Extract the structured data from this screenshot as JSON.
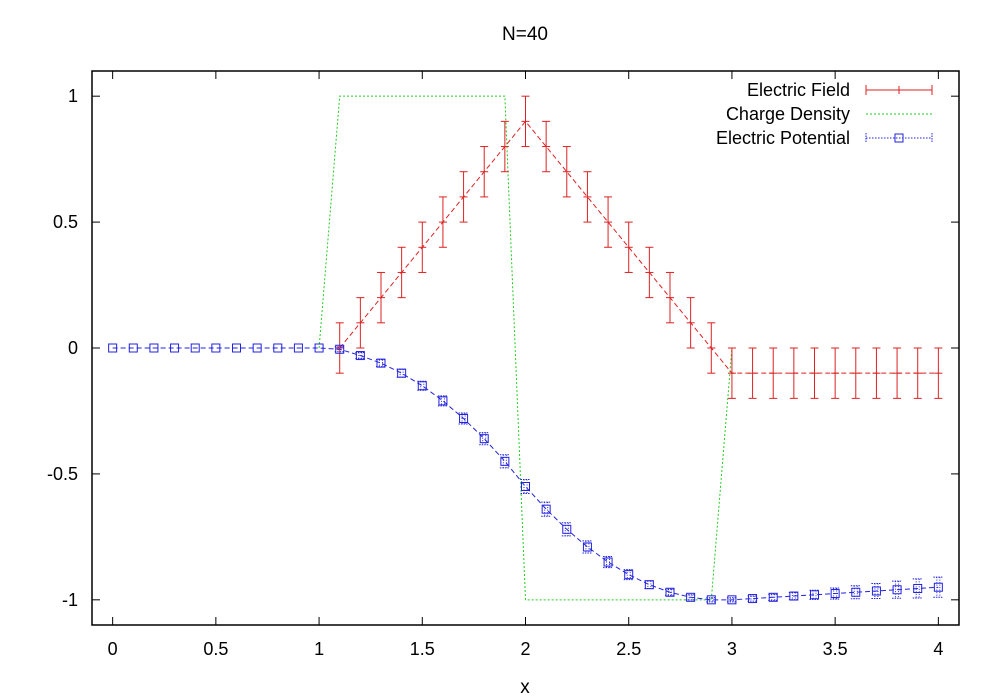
{
  "chart_data": {
    "type": "line",
    "title": "N=40",
    "xlabel": "x",
    "ylabel": "",
    "xlim": [
      -0.1,
      4.1
    ],
    "ylim": [
      -1.1,
      1.1
    ],
    "grid": false,
    "legend_position": "top-right",
    "x_ticks": [
      {
        "value": 0,
        "label": "0"
      },
      {
        "value": 0.5,
        "label": "0.5"
      },
      {
        "value": 1,
        "label": "1"
      },
      {
        "value": 1.5,
        "label": "1.5"
      },
      {
        "value": 2,
        "label": "2"
      },
      {
        "value": 2.5,
        "label": "2.5"
      },
      {
        "value": 3,
        "label": "3"
      },
      {
        "value": 3.5,
        "label": "3.5"
      },
      {
        "value": 4,
        "label": "4"
      }
    ],
    "y_ticks": [
      {
        "value": -1,
        "label": "-1"
      },
      {
        "value": -0.5,
        "label": "-0.5"
      },
      {
        "value": 0,
        "label": "0"
      },
      {
        "value": 0.5,
        "label": "0.5"
      },
      {
        "value": 1,
        "label": "1"
      }
    ],
    "series": [
      {
        "name": "Electric Field",
        "color": "#dd2222",
        "style": "dashed-errorbars-plus",
        "x": [
          1.1,
          1.2,
          1.3,
          1.4,
          1.5,
          1.6,
          1.7,
          1.8,
          1.9,
          2.0,
          2.1,
          2.2,
          2.3,
          2.4,
          2.5,
          2.6,
          2.7,
          2.8,
          2.9,
          3.0,
          3.1,
          3.2,
          3.3,
          3.4,
          3.5,
          3.6,
          3.7,
          3.8,
          3.9,
          4.0
        ],
        "y": [
          0,
          0.1,
          0.2,
          0.3,
          0.4,
          0.5,
          0.6,
          0.7,
          0.8,
          0.9,
          0.8,
          0.7,
          0.6,
          0.5,
          0.4,
          0.3,
          0.2,
          0.1,
          0,
          -0.1,
          -0.1,
          -0.1,
          -0.1,
          -0.1,
          -0.1,
          -0.1,
          -0.1,
          -0.1,
          -0.1,
          -0.1
        ],
        "error": 0.1
      },
      {
        "name": "Charge Density",
        "color": "#22cc22",
        "style": "dotted",
        "x": [
          1.0,
          1.1,
          1.9,
          2.0,
          2.9,
          3.0
        ],
        "y": [
          0,
          1,
          1,
          -1,
          -1,
          0
        ]
      },
      {
        "name": "Electric Potential",
        "color": "#2222dd",
        "style": "dashed-errorbars-square",
        "x": [
          0,
          0.1,
          0.2,
          0.3,
          0.4,
          0.5,
          0.6,
          0.7,
          0.8,
          0.9,
          1.0,
          1.1,
          1.2,
          1.3,
          1.4,
          1.5,
          1.6,
          1.7,
          1.8,
          1.9,
          2.0,
          2.1,
          2.2,
          2.3,
          2.4,
          2.5,
          2.6,
          2.7,
          2.8,
          2.9,
          3.0,
          3.1,
          3.2,
          3.3,
          3.4,
          3.5,
          3.6,
          3.7,
          3.8,
          3.9,
          4.0
        ],
        "y": [
          0,
          0,
          0,
          0,
          0,
          0,
          0,
          0,
          0,
          0,
          0,
          -0.005,
          -0.03,
          -0.06,
          -0.1,
          -0.15,
          -0.21,
          -0.28,
          -0.36,
          -0.45,
          -0.55,
          -0.64,
          -0.72,
          -0.79,
          -0.85,
          -0.9,
          -0.94,
          -0.97,
          -0.99,
          -1.0,
          -1.0,
          -0.995,
          -0.99,
          -0.985,
          -0.98,
          -0.975,
          -0.97,
          -0.965,
          -0.96,
          -0.955,
          -0.95
        ],
        "error": [
          0,
          0,
          0,
          0,
          0,
          0,
          0,
          0,
          0,
          0,
          0,
          0.01,
          0.012,
          0.014,
          0.016,
          0.018,
          0.02,
          0.022,
          0.024,
          0.026,
          0.028,
          0.028,
          0.026,
          0.024,
          0.022,
          0.02,
          0.015,
          0.012,
          0.01,
          0.008,
          0.008,
          0.01,
          0.012,
          0.014,
          0.018,
          0.022,
          0.026,
          0.03,
          0.034,
          0.038,
          0.04
        ]
      }
    ]
  }
}
